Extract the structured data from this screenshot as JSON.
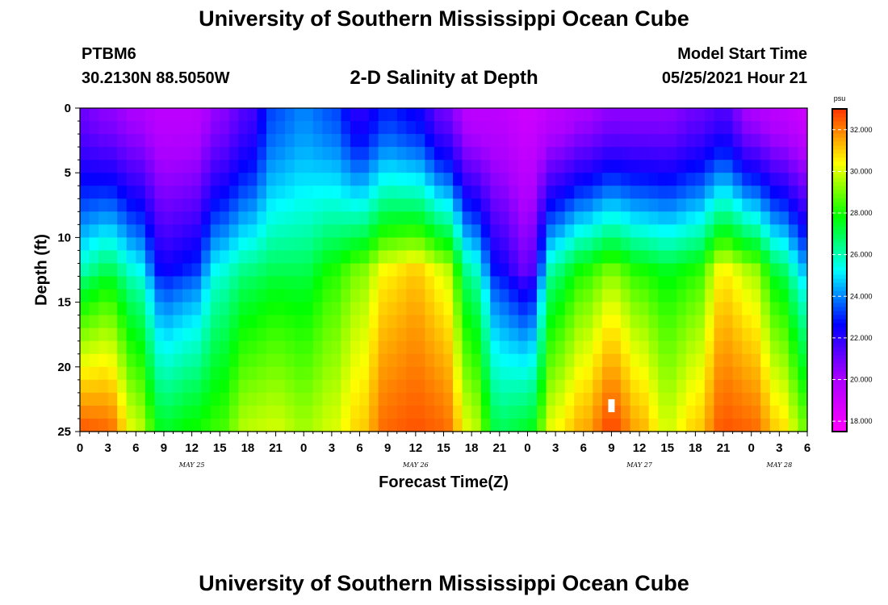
{
  "header": {
    "title": "University of Southern Mississippi Ocean Cube",
    "station_id": "PTBM6",
    "coordinates": "30.2130N  88.5050W",
    "plot_title": "2-D Salinity at Depth",
    "model_start_label": "Model Start Time",
    "model_start_time": "05/25/2021 Hour 21"
  },
  "footer": {
    "title": "University of Southern Mississippi Ocean Cube"
  },
  "colors": {
    "scale": [
      "#ff00ff",
      "#aa00ff",
      "#0000ff",
      "#00ffff",
      "#00ff00",
      "#ffff00",
      "#ff3300"
    ],
    "marker": "#ffffff"
  },
  "chart_data": {
    "type": "heatmap",
    "title": "2-D Salinity at Depth",
    "xlabel": "Forecast Time(Z)",
    "ylabel": "Depth (ft)",
    "x_unit": "hours since 05/25/2021 00Z",
    "xlim": [
      0,
      78
    ],
    "ylim": [
      0,
      25
    ],
    "y_inverted": true,
    "x_ticks": [
      {
        "x": 0,
        "label": "0"
      },
      {
        "x": 3,
        "label": "3"
      },
      {
        "x": 6,
        "label": "6"
      },
      {
        "x": 9,
        "label": "9"
      },
      {
        "x": 12,
        "label": "12"
      },
      {
        "x": 15,
        "label": "15"
      },
      {
        "x": 18,
        "label": "18"
      },
      {
        "x": 21,
        "label": "21"
      },
      {
        "x": 24,
        "label": "0"
      },
      {
        "x": 27,
        "label": "3"
      },
      {
        "x": 30,
        "label": "6"
      },
      {
        "x": 33,
        "label": "9"
      },
      {
        "x": 36,
        "label": "12"
      },
      {
        "x": 39,
        "label": "15"
      },
      {
        "x": 42,
        "label": "18"
      },
      {
        "x": 45,
        "label": "21"
      },
      {
        "x": 48,
        "label": "0"
      },
      {
        "x": 51,
        "label": "3"
      },
      {
        "x": 54,
        "label": "6"
      },
      {
        "x": 57,
        "label": "9"
      },
      {
        "x": 60,
        "label": "12"
      },
      {
        "x": 63,
        "label": "15"
      },
      {
        "x": 66,
        "label": "18"
      },
      {
        "x": 69,
        "label": "21"
      },
      {
        "x": 72,
        "label": "0"
      },
      {
        "x": 75,
        "label": "3"
      },
      {
        "x": 78,
        "label": "6"
      }
    ],
    "date_labels": [
      {
        "x": 12,
        "label": "MAY 25"
      },
      {
        "x": 36,
        "label": "MAY 26"
      },
      {
        "x": 60,
        "label": "MAY 27"
      },
      {
        "x": 75,
        "label": "MAY 28"
      }
    ],
    "y_ticks": [
      0,
      5,
      10,
      15,
      20,
      25
    ],
    "colorbar": {
      "unit": "psu",
      "min": 17.5,
      "max": 33.0,
      "tick_labels": [
        "18.000",
        "20.000",
        "22.000",
        "24.000",
        "26.000",
        "28.000",
        "30.000",
        "32.000"
      ],
      "tick_values": [
        18,
        20,
        22,
        24,
        26,
        28,
        30,
        32
      ]
    },
    "z_unit": "psu",
    "grid": {
      "x_step_hours": 1,
      "y_step_ft": 1,
      "columns": 78,
      "rows": 25
    },
    "depth_profile_anchors": [
      {
        "x": 0,
        "surface": 21.0,
        "mid": 26.0,
        "bottom": 32.6
      },
      {
        "x": 3,
        "surface": 20.5,
        "mid": 27.0,
        "bottom": 32.4
      },
      {
        "x": 6,
        "surface": 20.0,
        "mid": 25.5,
        "bottom": 30.0
      },
      {
        "x": 9,
        "surface": 19.5,
        "mid": 22.5,
        "bottom": 27.5
      },
      {
        "x": 12,
        "surface": 19.5,
        "mid": 23.0,
        "bottom": 28.0
      },
      {
        "x": 15,
        "surface": 20.5,
        "mid": 25.5,
        "bottom": 28.5
      },
      {
        "x": 18,
        "surface": 21.5,
        "mid": 26.5,
        "bottom": 29.8
      },
      {
        "x": 21,
        "surface": 23.5,
        "mid": 27.0,
        "bottom": 30.0
      },
      {
        "x": 24,
        "surface": 24.0,
        "mid": 27.0,
        "bottom": 29.5
      },
      {
        "x": 27,
        "surface": 23.5,
        "mid": 28.0,
        "bottom": 30.0
      },
      {
        "x": 30,
        "surface": 22.0,
        "mid": 29.0,
        "bottom": 31.0
      },
      {
        "x": 33,
        "surface": 23.0,
        "mid": 30.5,
        "bottom": 32.4
      },
      {
        "x": 36,
        "surface": 22.5,
        "mid": 31.0,
        "bottom": 32.6
      },
      {
        "x": 39,
        "surface": 21.0,
        "mid": 30.0,
        "bottom": 32.4
      },
      {
        "x": 42,
        "surface": 19.5,
        "mid": 26.0,
        "bottom": 30.0
      },
      {
        "x": 45,
        "surface": 19.5,
        "mid": 22.5,
        "bottom": 27.0
      },
      {
        "x": 48,
        "surface": 19.0,
        "mid": 21.0,
        "bottom": 27.5
      },
      {
        "x": 51,
        "surface": 19.5,
        "mid": 26.5,
        "bottom": 30.5
      },
      {
        "x": 54,
        "surface": 20.0,
        "mid": 28.0,
        "bottom": 31.5
      },
      {
        "x": 57,
        "surface": 20.5,
        "mid": 29.0,
        "bottom": 32.8
      },
      {
        "x": 60,
        "surface": 20.5,
        "mid": 28.0,
        "bottom": 31.5
      },
      {
        "x": 63,
        "surface": 20.5,
        "mid": 27.5,
        "bottom": 30.0
      },
      {
        "x": 66,
        "surface": 21.0,
        "mid": 28.0,
        "bottom": 31.0
      },
      {
        "x": 69,
        "surface": 21.5,
        "mid": 30.5,
        "bottom": 32.6
      },
      {
        "x": 72,
        "surface": 20.0,
        "mid": 29.5,
        "bottom": 32.4
      },
      {
        "x": 75,
        "surface": 19.5,
        "mid": 27.0,
        "bottom": 31.0
      },
      {
        "x": 78,
        "surface": 19.0,
        "mid": 24.5,
        "bottom": 29.0
      }
    ],
    "marker": {
      "x": 57,
      "y": 23
    }
  }
}
